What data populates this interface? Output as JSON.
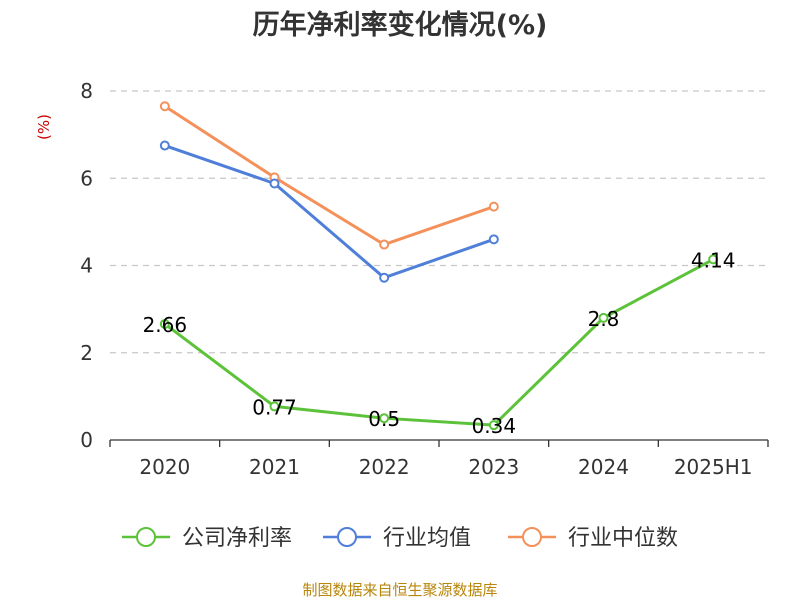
{
  "chart_data": {
    "type": "line",
    "title": "历年净利率变化情况(%)",
    "ylabel": "(%)",
    "categories": [
      "2020",
      "2021",
      "2022",
      "2023",
      "2024",
      "2025H1"
    ],
    "ylim": [
      0,
      8
    ],
    "yticks": [
      0,
      2,
      4,
      6,
      8
    ],
    "grid": true,
    "legend_position": "bottom",
    "series": [
      {
        "name": "公司净利率",
        "color": "#5cc23a",
        "values": [
          2.66,
          0.77,
          0.5,
          0.34,
          2.8,
          4.14
        ],
        "labels": [
          "2.66",
          "0.77",
          "0.5",
          "0.34",
          "2.8",
          "4.14"
        ]
      },
      {
        "name": "行业均值",
        "color": "#4f7fd9",
        "values": [
          6.75,
          5.88,
          3.72,
          4.6,
          null,
          null
        ]
      },
      {
        "name": "行业中位数",
        "color": "#f4905a",
        "values": [
          7.65,
          6.02,
          4.48,
          5.35,
          null,
          null
        ]
      }
    ]
  },
  "source": "制图数据来自恒生聚源数据库"
}
